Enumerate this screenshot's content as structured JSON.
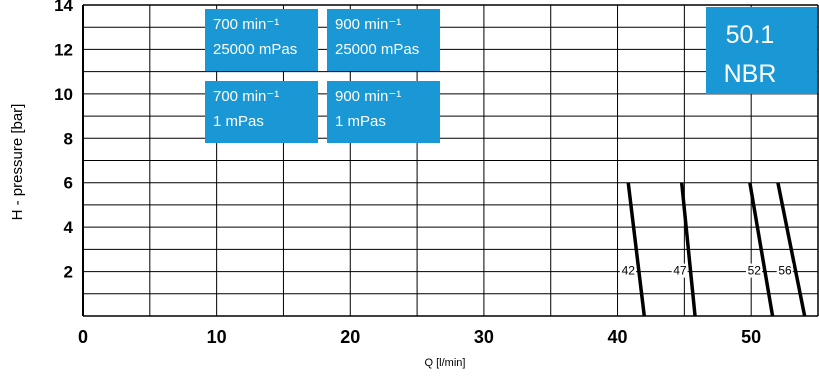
{
  "chart_data": {
    "type": "line",
    "title": "",
    "xlabel": "Q [l/min]",
    "ylabel": "H - pressure [bar]",
    "xlim": [
      0,
      55
    ],
    "ylim": [
      0,
      14
    ],
    "x_ticks": [
      "0",
      "10",
      "20",
      "30",
      "40",
      "50"
    ],
    "y_ticks": [
      "2",
      "4",
      "6",
      "8",
      "10",
      "12",
      "14"
    ],
    "grid": true,
    "series": [
      {
        "name": "42",
        "color": "#000000",
        "points": [
          [
            40.8,
            6
          ],
          [
            42.0,
            0
          ]
        ]
      },
      {
        "name": "47",
        "color": "#000000",
        "points": [
          [
            44.8,
            6
          ],
          [
            45.8,
            0
          ]
        ]
      },
      {
        "name": "52",
        "color": "#000000",
        "points": [
          [
            49.9,
            6
          ],
          [
            51.6,
            0
          ]
        ]
      },
      {
        "name": "56",
        "color": "#000000",
        "points": [
          [
            52.0,
            6
          ],
          [
            54.0,
            0
          ]
        ]
      }
    ],
    "legend": [
      {
        "line1": "700 min⁻¹",
        "line2": "25000 mPas"
      },
      {
        "line1": "900 min⁻¹",
        "line2": "25000 mPas"
      },
      {
        "line1": "700 min⁻¹",
        "line2": "1 mPas"
      },
      {
        "line1": "900 min⁻¹",
        "line2": "1 mPas"
      }
    ],
    "legend_color": "#1a97d5",
    "badge": {
      "line1": "50.1",
      "line2": "NBR",
      "color": "#1a97d5"
    }
  }
}
